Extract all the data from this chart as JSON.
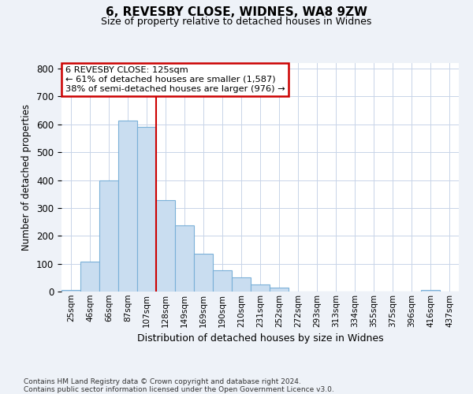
{
  "title_line1": "6, REVESBY CLOSE, WIDNES, WA8 9ZW",
  "title_line2": "Size of property relative to detached houses in Widnes",
  "xlabel": "Distribution of detached houses by size in Widnes",
  "ylabel": "Number of detached properties",
  "categories": [
    "25sqm",
    "46sqm",
    "66sqm",
    "87sqm",
    "107sqm",
    "128sqm",
    "149sqm",
    "169sqm",
    "190sqm",
    "210sqm",
    "231sqm",
    "252sqm",
    "272sqm",
    "293sqm",
    "313sqm",
    "334sqm",
    "355sqm",
    "375sqm",
    "396sqm",
    "416sqm",
    "437sqm"
  ],
  "bar_values": [
    6,
    107,
    400,
    615,
    590,
    328,
    237,
    135,
    77,
    50,
    25,
    15,
    0,
    0,
    0,
    0,
    0,
    0,
    0,
    5,
    0
  ],
  "bar_fill_color": "#c9ddf0",
  "bar_edge_color": "#7ab0d8",
  "property_line_x": 5.0,
  "annotation_line1": "6 REVESBY CLOSE: 125sqm",
  "annotation_line2": "← 61% of detached houses are smaller (1,587)",
  "annotation_line3": "38% of semi-detached houses are larger (976) →",
  "annotation_box_facecolor": "#ffffff",
  "annotation_box_edgecolor": "#cc0000",
  "vline_color": "#cc0000",
  "grid_color": "#c8d4e8",
  "plot_bg_color": "#ffffff",
  "fig_bg_color": "#eef2f8",
  "ylim_max": 820,
  "yticks": [
    0,
    100,
    200,
    300,
    400,
    500,
    600,
    700,
    800
  ],
  "footnote": "Contains HM Land Registry data © Crown copyright and database right 2024.\nContains public sector information licensed under the Open Government Licence v3.0."
}
